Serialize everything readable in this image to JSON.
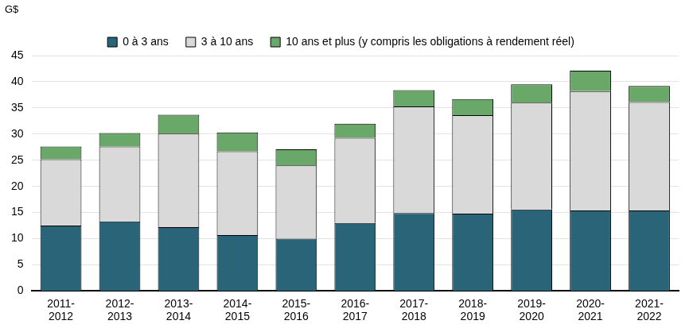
{
  "chart_data": {
    "type": "bar",
    "stacked": true,
    "ylabel": "G$",
    "categories": [
      "2011-2012",
      "2012-2013",
      "2013-2014",
      "2014-2015",
      "2015-2016",
      "2016-2017",
      "2017-2018",
      "2018-2019",
      "2019-2020",
      "2020-2021",
      "2021-2022"
    ],
    "series": [
      {
        "name": "0 à 3 ans",
        "color": "#2a6478",
        "values": [
          12.5,
          13.3,
          12.2,
          10.7,
          10.0,
          13.0,
          14.9,
          14.8,
          15.6,
          15.4,
          15.4
        ]
      },
      {
        "name": "3 à 10 ans",
        "color": "#d9d9d9",
        "values": [
          12.7,
          14.3,
          17.9,
          16.0,
          14.0,
          16.3,
          20.4,
          18.8,
          20.4,
          22.8,
          20.7
        ]
      },
      {
        "name": "10 ans et plus (y compris les obligations à rendement réel)",
        "color": "#6aa86a",
        "values": [
          2.4,
          2.6,
          3.6,
          3.6,
          3.1,
          2.7,
          3.1,
          3.1,
          3.5,
          3.9,
          3.1
        ]
      }
    ],
    "ylim": [
      0,
      45
    ],
    "yticks": [
      0,
      5,
      10,
      15,
      20,
      25,
      30,
      35,
      40,
      45
    ],
    "grid": true,
    "legend": "top"
  }
}
